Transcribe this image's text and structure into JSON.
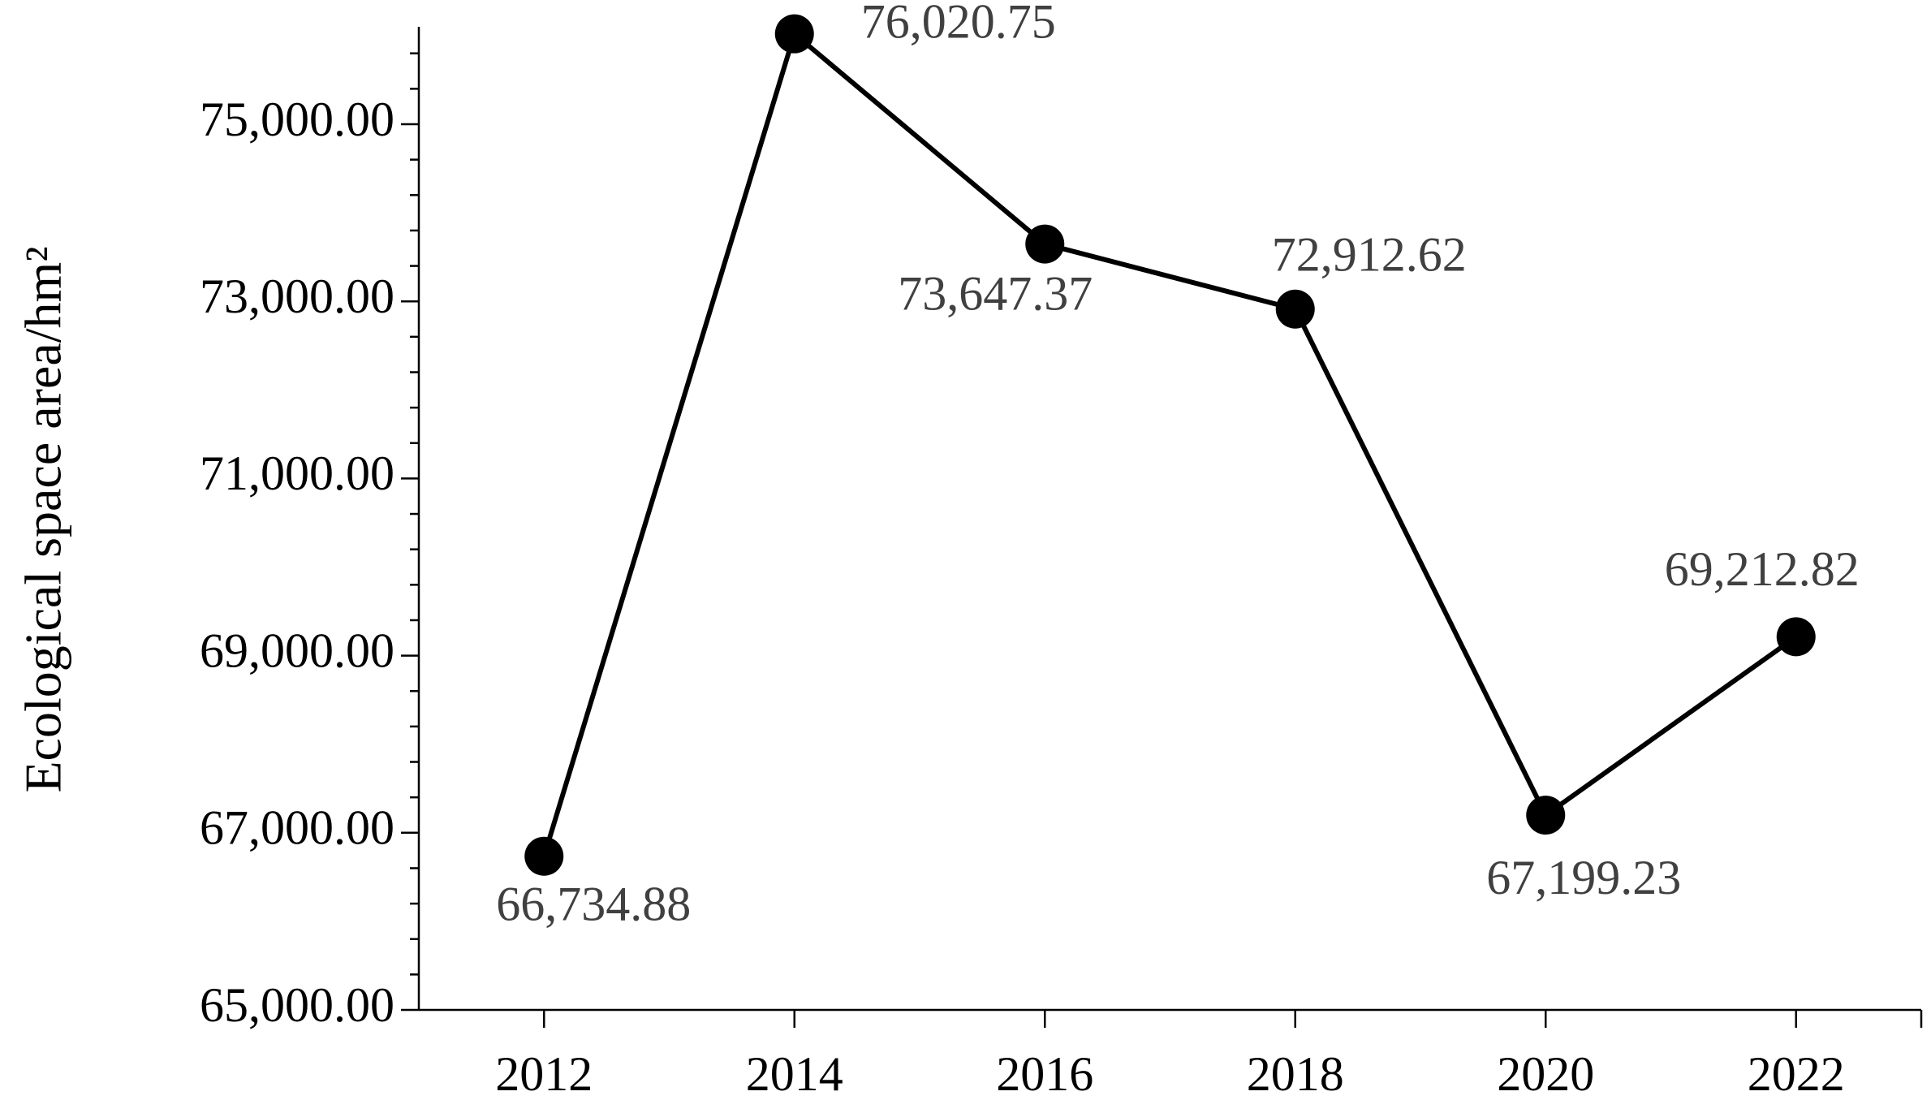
{
  "chart_data": {
    "type": "line",
    "y_label": "Ecological space area/hm²",
    "categories": [
      "2012",
      "2014",
      "2016",
      "2018",
      "2020",
      "2022"
    ],
    "series": [
      {
        "color": "#000000",
        "values": [
          66734.88,
          76020.75,
          73647.37,
          72912.62,
          67199.23,
          69212.82
        ],
        "value_labels": [
          "66,734.88",
          "76,020.75",
          "73,647.37",
          "72,912.62",
          "67,199.23",
          "69,212.82"
        ]
      }
    ],
    "ylim": [
      65000,
      76100
    ],
    "yticks": [
      {
        "value": 65000,
        "label": "65,000.00"
      },
      {
        "value": 67000,
        "label": "67,000.00"
      },
      {
        "value": 69000,
        "label": "69,000.00"
      },
      {
        "value": 71000,
        "label": "71,000.00"
      },
      {
        "value": 73000,
        "label": "73,000.00"
      },
      {
        "value": 75000,
        "label": "75,000.00"
      }
    ],
    "yminorticks": [
      65400,
      65800,
      66200,
      66600,
      67400,
      67800,
      68200,
      68600,
      69400,
      69800,
      70200,
      70600,
      71400,
      71800,
      72200,
      72600,
      73400,
      73800,
      74200,
      74600,
      75400,
      75800
    ],
    "grid": false
  }
}
